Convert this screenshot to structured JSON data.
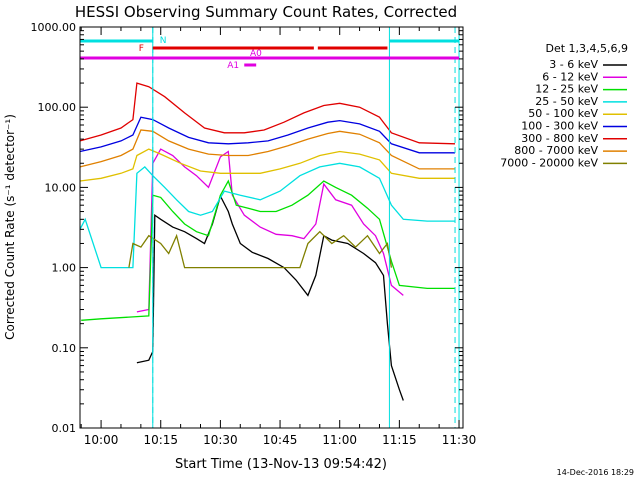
{
  "chart_data": {
    "type": "line",
    "title": "HESSI Observing Summary Count Rates, Corrected",
    "xlabel": "Start Time (13-Nov-13 09:54:42)",
    "ylabel": "Corrected Count Rate (s⁻¹ detector⁻¹)",
    "y_scale": "log",
    "ylim": [
      0.01,
      1000
    ],
    "xlim": [
      "09:54:42",
      "11:31:00"
    ],
    "x_ticks": [
      "10:00",
      "10:15",
      "10:30",
      "10:45",
      "11:00",
      "11:15",
      "11:30"
    ],
    "y_ticks": [
      "1000.00",
      "100.00",
      "10.00",
      "1.00",
      "0.10",
      "0.01"
    ],
    "grid": false,
    "legend_position": "right",
    "legend_title": "Det 1,3,4,5,6,9",
    "annotations": {
      "night_label": "N",
      "flare_label": "F",
      "attenuator_label_a0": "A0",
      "attenuator_label_a1": "A1",
      "night_periods": [
        [
          "09:54:42",
          "10:13:00"
        ],
        [
          "11:12:30",
          "11:30:00"
        ]
      ],
      "flare_periods": [
        [
          "10:13:00",
          "10:53:30"
        ],
        [
          "10:54:30",
          "11:12:00"
        ]
      ],
      "a0_period": [
        "09:54:42",
        "11:30:00"
      ],
      "a1_period": [
        "10:36:00",
        "10:39:00"
      ],
      "dashed_lines": [
        "10:13:00",
        "11:29:00"
      ]
    },
    "footer_date": "14-Dec-2016 18:29",
    "series": [
      {
        "name": "3 - 6 keV",
        "color": "#000000",
        "points": [
          [
            "10:09",
            "0.065"
          ],
          [
            "10:12",
            "0.07"
          ],
          [
            "10:13",
            "0.09"
          ],
          [
            "10:13:30",
            "4.5"
          ],
          [
            "10:15",
            "4.0"
          ],
          [
            "10:18",
            "3.2"
          ],
          [
            "10:21",
            "2.8"
          ],
          [
            "10:24",
            "2.3"
          ],
          [
            "10:26",
            "2.0"
          ],
          [
            "10:28",
            "3.5"
          ],
          [
            "10:30",
            "7.8"
          ],
          [
            "10:32",
            "5.0"
          ],
          [
            "10:33",
            "3.5"
          ],
          [
            "10:35",
            "2.0"
          ],
          [
            "10:38",
            "1.55"
          ],
          [
            "10:42",
            "1.3"
          ],
          [
            "10:46",
            "1.0"
          ],
          [
            "10:49",
            "0.7"
          ],
          [
            "10:52",
            "0.45"
          ],
          [
            "10:54",
            "0.8"
          ],
          [
            "10:56",
            "2.5"
          ],
          [
            "10:58",
            "2.2"
          ],
          [
            "11:02",
            "2.0"
          ],
          [
            "11:06",
            "1.5"
          ],
          [
            "11:09",
            "1.15"
          ],
          [
            "11:11",
            "0.8"
          ],
          [
            "11:12",
            "0.2"
          ],
          [
            "11:13",
            "0.06"
          ],
          [
            "11:15",
            "0.03"
          ],
          [
            "11:16",
            "0.022"
          ]
        ]
      },
      {
        "name": "6 - 12 keV",
        "color": "#e000e0",
        "points": [
          [
            "10:09",
            "0.28"
          ],
          [
            "10:12",
            "0.3"
          ],
          [
            "10:13",
            "20"
          ],
          [
            "10:15",
            "30"
          ],
          [
            "10:18",
            "25"
          ],
          [
            "10:21",
            "18"
          ],
          [
            "10:24",
            "14"
          ],
          [
            "10:27",
            "10"
          ],
          [
            "10:30",
            "24"
          ],
          [
            "10:32",
            "28"
          ],
          [
            "10:33",
            "8"
          ],
          [
            "10:36",
            "4.5"
          ],
          [
            "10:40",
            "3.2"
          ],
          [
            "10:44",
            "2.6"
          ],
          [
            "10:48",
            "2.5"
          ],
          [
            "10:51",
            "2.3"
          ],
          [
            "10:54",
            "3.5"
          ],
          [
            "10:56",
            "11"
          ],
          [
            "10:59",
            "7"
          ],
          [
            "11:03",
            "6"
          ],
          [
            "11:06",
            "3.5"
          ],
          [
            "11:09",
            "2.5"
          ],
          [
            "11:11",
            "1.5"
          ],
          [
            "11:13",
            "0.6"
          ],
          [
            "11:16",
            "0.45"
          ]
        ]
      },
      {
        "name": "12 - 25 keV",
        "color": "#00e000",
        "points": [
          [
            "09:55",
            "0.22"
          ],
          [
            "10:00",
            "0.23"
          ],
          [
            "10:12",
            "0.25"
          ],
          [
            "10:13",
            "8"
          ],
          [
            "10:15",
            "7.5"
          ],
          [
            "10:18",
            "5"
          ],
          [
            "10:21",
            "3.5"
          ],
          [
            "10:24",
            "2.8"
          ],
          [
            "10:27",
            "2.5"
          ],
          [
            "10:30",
            "8"
          ],
          [
            "10:32",
            "12"
          ],
          [
            "10:34",
            "6"
          ],
          [
            "10:37",
            "5.5"
          ],
          [
            "10:40",
            "5"
          ],
          [
            "10:44",
            "5"
          ],
          [
            "10:48",
            "6"
          ],
          [
            "10:52",
            "8"
          ],
          [
            "10:56",
            "12"
          ],
          [
            "10:59",
            "10"
          ],
          [
            "11:03",
            "8"
          ],
          [
            "11:07",
            "5.5"
          ],
          [
            "11:10",
            "4"
          ],
          [
            "11:13",
            "1.2"
          ],
          [
            "11:15",
            "0.6"
          ],
          [
            "11:22",
            "0.55"
          ],
          [
            "11:29",
            "0.55"
          ]
        ]
      },
      {
        "name": "25 - 50 keV",
        "color": "#00e0e0",
        "points": [
          [
            "09:54:42",
            "3.0"
          ],
          [
            "09:56",
            "4.0"
          ],
          [
            "10:00",
            "1.0"
          ],
          [
            "10:08",
            "1.0"
          ],
          [
            "10:09",
            "15"
          ],
          [
            "10:11",
            "18"
          ],
          [
            "10:13",
            "14"
          ],
          [
            "10:16",
            "10"
          ],
          [
            "10:19",
            "7"
          ],
          [
            "10:22",
            "5"
          ],
          [
            "10:25",
            "4.5"
          ],
          [
            "10:28",
            "5"
          ],
          [
            "10:31",
            "9"
          ],
          [
            "10:35",
            "8"
          ],
          [
            "10:40",
            "7"
          ],
          [
            "10:45",
            "9"
          ],
          [
            "10:50",
            "14"
          ],
          [
            "10:55",
            "18"
          ],
          [
            "11:00",
            "20"
          ],
          [
            "11:05",
            "18"
          ],
          [
            "11:10",
            "13"
          ],
          [
            "11:13",
            "6"
          ],
          [
            "11:16",
            "4"
          ],
          [
            "11:22",
            "3.8"
          ],
          [
            "11:29",
            "3.8"
          ]
        ]
      },
      {
        "name": "50 - 100 keV",
        "color": "#e0c000",
        "points": [
          [
            "09:54:42",
            "12"
          ],
          [
            "10:00",
            "13"
          ],
          [
            "10:05",
            "15"
          ],
          [
            "10:08",
            "17"
          ],
          [
            "10:09",
            "25"
          ],
          [
            "10:12",
            "30"
          ],
          [
            "10:15",
            "26"
          ],
          [
            "10:20",
            "20"
          ],
          [
            "10:25",
            "16"
          ],
          [
            "10:30",
            "15"
          ],
          [
            "10:35",
            "15"
          ],
          [
            "10:40",
            "15"
          ],
          [
            "10:45",
            "17"
          ],
          [
            "10:50",
            "20"
          ],
          [
            "10:55",
            "25"
          ],
          [
            "11:00",
            "28"
          ],
          [
            "11:05",
            "26"
          ],
          [
            "11:10",
            "22"
          ],
          [
            "11:13",
            "15"
          ],
          [
            "11:20",
            "13"
          ],
          [
            "11:29",
            "13"
          ]
        ]
      },
      {
        "name": "100 - 300 keV",
        "color": "#0000e0",
        "points": [
          [
            "09:54:42",
            "28"
          ],
          [
            "10:00",
            "32"
          ],
          [
            "10:05",
            "38"
          ],
          [
            "10:08",
            "45"
          ],
          [
            "10:10",
            "75"
          ],
          [
            "10:13",
            "70"
          ],
          [
            "10:17",
            "55"
          ],
          [
            "10:22",
            "42"
          ],
          [
            "10:27",
            "36"
          ],
          [
            "10:32",
            "35"
          ],
          [
            "10:37",
            "36"
          ],
          [
            "10:42",
            "38"
          ],
          [
            "10:47",
            "45"
          ],
          [
            "10:52",
            "55"
          ],
          [
            "10:57",
            "65"
          ],
          [
            "11:00",
            "68"
          ],
          [
            "11:05",
            "62"
          ],
          [
            "11:10",
            "50"
          ],
          [
            "11:13",
            "35"
          ],
          [
            "11:20",
            "27"
          ],
          [
            "11:29",
            "27"
          ]
        ]
      },
      {
        "name": "300 - 800 keV",
        "color": "#e00000",
        "points": [
          [
            "09:54:42",
            "38"
          ],
          [
            "10:00",
            "45"
          ],
          [
            "10:05",
            "55"
          ],
          [
            "10:08",
            "70"
          ],
          [
            "10:09",
            "200"
          ],
          [
            "10:12",
            "180"
          ],
          [
            "10:16",
            "135"
          ],
          [
            "10:21",
            "85"
          ],
          [
            "10:26",
            "55"
          ],
          [
            "10:31",
            "48"
          ],
          [
            "10:36",
            "48"
          ],
          [
            "10:41",
            "52"
          ],
          [
            "10:46",
            "65"
          ],
          [
            "10:51",
            "85"
          ],
          [
            "10:56",
            "105"
          ],
          [
            "11:00",
            "112"
          ],
          [
            "11:05",
            "100"
          ],
          [
            "11:10",
            "75"
          ],
          [
            "11:13",
            "48"
          ],
          [
            "11:20",
            "36"
          ],
          [
            "11:29",
            "35"
          ]
        ]
      },
      {
        "name": "800 - 7000 keV",
        "color": "#e08000",
        "points": [
          [
            "09:54:42",
            "18"
          ],
          [
            "10:00",
            "21"
          ],
          [
            "10:05",
            "25"
          ],
          [
            "10:08",
            "30"
          ],
          [
            "10:10",
            "52"
          ],
          [
            "10:13",
            "50"
          ],
          [
            "10:17",
            "38"
          ],
          [
            "10:22",
            "30"
          ],
          [
            "10:27",
            "26"
          ],
          [
            "10:32",
            "25"
          ],
          [
            "10:37",
            "25"
          ],
          [
            "10:42",
            "28"
          ],
          [
            "10:47",
            "33"
          ],
          [
            "10:52",
            "40"
          ],
          [
            "10:57",
            "47"
          ],
          [
            "11:00",
            "50"
          ],
          [
            "11:05",
            "46"
          ],
          [
            "11:10",
            "36"
          ],
          [
            "11:13",
            "25"
          ],
          [
            "11:20",
            "17"
          ],
          [
            "11:29",
            "17"
          ]
        ]
      },
      {
        "name": "7000 - 20000 keV",
        "color": "#808000",
        "points": [
          [
            "10:07",
            "1.0"
          ],
          [
            "10:08",
            "2.0"
          ],
          [
            "10:10",
            "1.8"
          ],
          [
            "10:12",
            "2.5"
          ],
          [
            "10:15",
            "2.0"
          ],
          [
            "10:17",
            "1.5"
          ],
          [
            "10:19",
            "2.5"
          ],
          [
            "10:21",
            "1.0"
          ],
          [
            "10:50",
            "1.0"
          ],
          [
            "10:52",
            "2.0"
          ],
          [
            "10:55",
            "2.8"
          ],
          [
            "10:58",
            "2.0"
          ],
          [
            "11:01",
            "2.5"
          ],
          [
            "11:04",
            "1.8"
          ],
          [
            "11:07",
            "2.5"
          ],
          [
            "11:10",
            "1.5"
          ],
          [
            "11:12",
            "2.0"
          ],
          [
            "11:13",
            "1.0"
          ]
        ]
      }
    ]
  }
}
